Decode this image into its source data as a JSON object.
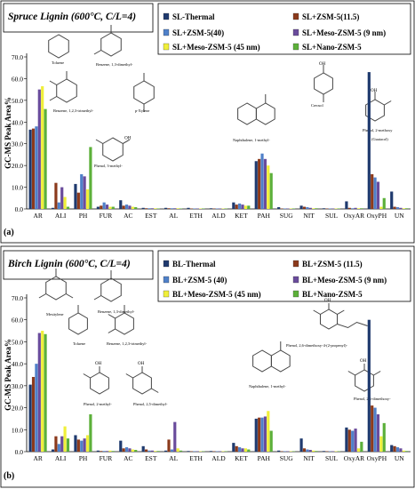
{
  "chart_data": [
    {
      "type": "bar",
      "panel_label": "(a)",
      "title": "Spruce Lignin (600°C, C/L=4)",
      "ylabel": "GC-MS Peak Area%",
      "xlabel": "",
      "ylim": [
        0,
        70
      ],
      "yticks": [
        "0.0",
        "10.0",
        "20.0",
        "30.0",
        "40.0",
        "50.0",
        "60.0",
        "70.0"
      ],
      "categories": [
        "AR",
        "ALI",
        "PH",
        "FUR",
        "AC",
        "EST",
        "AL",
        "ETH",
        "ALD",
        "KET",
        "PAH",
        "SUG",
        "NIT",
        "SUL",
        "OxyAR",
        "OxyPH",
        "UN"
      ],
      "legend_position": "top-right",
      "series": [
        {
          "name": "SL-Thermal",
          "color": "#1f3a6e",
          "values": [
            36.5,
            0.5,
            11.5,
            1.0,
            4.0,
            0.5,
            0.5,
            0.5,
            0.3,
            3.0,
            22.0,
            0.8,
            1.5,
            0.3,
            3.5,
            63.0,
            8.0
          ]
        },
        {
          "name": "SL+ZSM-5(11.5)",
          "color": "#8b3a1c",
          "values": [
            37.0,
            12.0,
            7.5,
            1.5,
            1.5,
            0.3,
            0.3,
            0.2,
            0.2,
            2.0,
            23.0,
            0.2,
            1.0,
            0.2,
            0.5,
            16.0,
            1.0
          ]
        },
        {
          "name": "SL+ZSM-5(40)",
          "color": "#4f80c9",
          "values": [
            38.0,
            3.0,
            16.0,
            3.0,
            2.0,
            0.3,
            0.3,
            0.2,
            0.2,
            2.5,
            25.5,
            0.2,
            0.8,
            0.2,
            0.3,
            14.5,
            0.8
          ]
        },
        {
          "name": "SL+Meso-ZSM-5 (9 nm)",
          "color": "#6a4c9c",
          "values": [
            55.0,
            10.0,
            15.0,
            2.0,
            1.5,
            0.3,
            0.3,
            0.2,
            0.2,
            2.0,
            23.0,
            0.2,
            0.5,
            0.2,
            0.5,
            12.5,
            0.5
          ]
        },
        {
          "name": "SL+Meso-ZSM-5 (45 nm)",
          "color": "#f0ef3a",
          "values": [
            56.5,
            5.5,
            9.0,
            1.0,
            1.0,
            0.3,
            0.3,
            0.2,
            0.2,
            1.5,
            20.0,
            0.2,
            0.3,
            0.2,
            0.3,
            1.0,
            0.3
          ]
        },
        {
          "name": "SL+Nano-ZSM-5",
          "color": "#5cb03a",
          "values": [
            46.0,
            1.0,
            28.5,
            1.0,
            0.8,
            0.2,
            0.2,
            0.2,
            0.2,
            1.5,
            16.5,
            0.2,
            0.3,
            0.2,
            0.3,
            5.0,
            0.3
          ]
        }
      ],
      "annotations": [
        "Toluene",
        "Benzene, 1,3-dimethyl-",
        "Benzene, 1,2,3-trimethyl-",
        "p-Xylene",
        "Phenol, 3-methyl-",
        "Naphthalene, 1-methyl-",
        "Creosol",
        "Phenol, 2-methoxy",
        "(Guaiacol)"
      ]
    },
    {
      "type": "bar",
      "panel_label": "(b)",
      "title": "Birch Lignin (600°C, C/L=4)",
      "ylabel": "GC-MS Peak Area%",
      "xlabel": "",
      "ylim": [
        0,
        70
      ],
      "yticks": [
        "0.0",
        "10.0",
        "20.0",
        "30.0",
        "40.0",
        "50.0",
        "60.0",
        "70.0"
      ],
      "categories": [
        "AR",
        "ALI",
        "PH",
        "FUR",
        "AC",
        "EST",
        "AL",
        "ETH",
        "ALD",
        "KET",
        "PAH",
        "SUG",
        "NIT",
        "SUL",
        "OxyAR",
        "OxyPH",
        "UN"
      ],
      "legend_position": "top-right",
      "series": [
        {
          "name": "BL-Thermal",
          "color": "#1f3a6e",
          "values": [
            30.5,
            1.0,
            7.5,
            0.5,
            5.0,
            2.5,
            0.5,
            0.3,
            0.3,
            4.0,
            15.0,
            0.5,
            6.0,
            0.3,
            11.0,
            60.0,
            3.0
          ]
        },
        {
          "name": "BL+ZSM-5 (11.5)",
          "color": "#8b3a1c",
          "values": [
            34.0,
            7.0,
            5.5,
            0.3,
            1.5,
            1.0,
            5.5,
            0.2,
            0.2,
            2.5,
            15.5,
            0.2,
            1.5,
            0.2,
            10.0,
            21.0,
            2.5
          ]
        },
        {
          "name": "BL+ZSM-5 (40)",
          "color": "#4f80c9",
          "values": [
            40.0,
            3.5,
            5.0,
            0.3,
            2.0,
            0.5,
            1.0,
            0.2,
            0.2,
            2.0,
            15.5,
            0.2,
            1.0,
            0.2,
            9.5,
            20.0,
            2.0
          ]
        },
        {
          "name": "BL+Meso-ZSM-5 (9 nm)",
          "color": "#6a4c9c",
          "values": [
            54.0,
            7.0,
            6.0,
            0.3,
            1.5,
            0.5,
            13.5,
            0.2,
            0.2,
            1.5,
            16.0,
            0.2,
            0.8,
            0.2,
            10.5,
            17.0,
            1.5
          ]
        },
        {
          "name": "BL+Meso-ZSM-5 (45 nm)",
          "color": "#f0ef3a",
          "values": [
            55.0,
            11.5,
            7.5,
            0.5,
            1.0,
            0.3,
            1.5,
            0.2,
            0.2,
            1.5,
            18.5,
            0.2,
            0.5,
            0.2,
            1.5,
            7.0,
            0.5
          ]
        },
        {
          "name": "BL+Nano-ZSM-5",
          "color": "#5cb03a",
          "values": [
            53.5,
            6.0,
            17.0,
            0.3,
            0.8,
            0.3,
            0.5,
            0.2,
            0.2,
            1.0,
            9.5,
            0.2,
            0.3,
            0.2,
            4.5,
            13.0,
            0.3
          ]
        }
      ],
      "annotations": [
        "Mesitylene",
        "Benzene, 1,3-dimethyl-",
        "Toluene",
        "Benzene, 1,2,3-trimethyl-",
        "Phenol, 2-methyl-",
        "Phenol, 2,5-dimethyl-",
        "Naphthalene, 1-methyl-",
        "Phenol, 2,6-dimethoxy-4-(2-propenyl)-",
        "Phenol, 2,6-dimethoxy-"
      ]
    }
  ]
}
